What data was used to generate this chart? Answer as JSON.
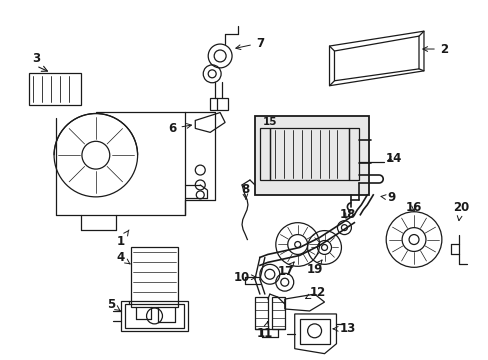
{
  "bg": "#ffffff",
  "lc": "#1a1a1a",
  "fig_w": 4.89,
  "fig_h": 3.6,
  "dpi": 100
}
